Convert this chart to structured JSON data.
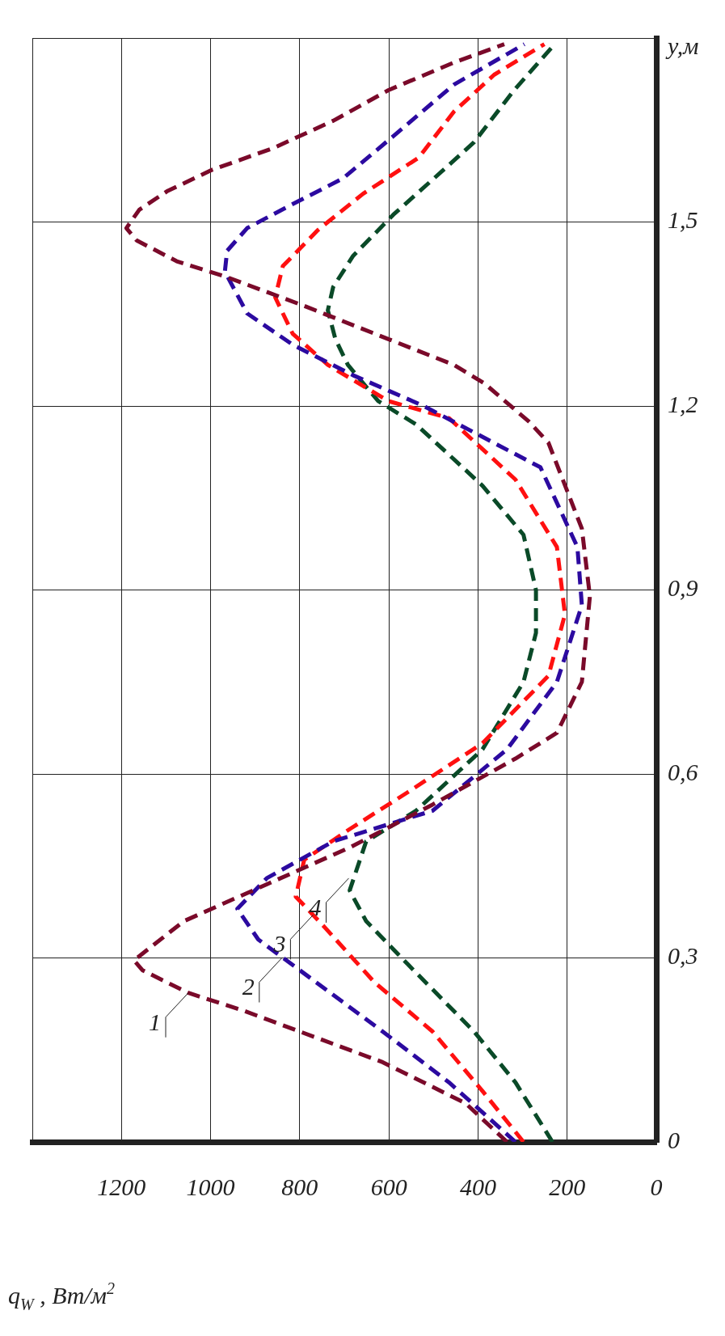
{
  "chart_data": {
    "type": "line",
    "xlabel": "q$_{W}$ , Вт/м$^{2}$",
    "ylabel": "y,м",
    "xlim": [
      1400,
      0
    ],
    "xticks": [
      {
        "value": 1400,
        "label": null
      },
      1200,
      1000,
      800,
      600,
      400,
      200,
      0
    ],
    "ylim": [
      0,
      1.8
    ],
    "yticks": [
      {
        "value": 0,
        "label": "0"
      },
      {
        "value": 0.3,
        "label": "0,3"
      },
      {
        "value": 0.6,
        "label": "0,6"
      },
      {
        "value": 0.9,
        "label": "0,9"
      },
      {
        "value": 1.2,
        "label": "1,2"
      },
      {
        "value": 1.5,
        "label": "1,5"
      },
      {
        "value": 1.8,
        "label": null
      }
    ],
    "grid": true,
    "legend": false,
    "marker": "none",
    "line_style": "dashed",
    "series": [
      {
        "color": "#7a0a2a",
        "values": [
          0,
          0.063,
          0.13,
          0.18,
          0.215,
          0.243,
          0.28,
          0.296,
          0.36,
          0.42,
          0.48,
          0.55,
          0.625,
          0.667,
          0.75,
          0.89,
          1.0,
          1.14,
          1.174,
          1.237,
          1.267,
          1.309,
          1.364,
          1.41,
          1.436,
          1.47,
          1.49,
          1.52,
          1.55,
          1.585,
          1.62,
          1.665,
          1.715,
          1.76,
          1.79
        ],
        "x": [
          335,
          428,
          614,
          800,
          930,
          1050,
          1153,
          1172,
          1060,
          874,
          688,
          502,
          316,
          223,
          167,
          149,
          167,
          242,
          285,
          386,
          454,
          601,
          793,
          963,
          1076,
          1166,
          1189,
          1160,
          1098,
          997,
          861,
          725,
          601,
          454,
          341
        ]
      },
      {
        "color": "#2c0aa0",
        "values": [
          0,
          0.097,
          0.18,
          0.28,
          0.33,
          0.38,
          0.43,
          0.49,
          0.54,
          0.64,
          0.75,
          0.875,
          0.97,
          1.1,
          1.2,
          1.25,
          1.3,
          1.351,
          1.419,
          1.453,
          1.49,
          1.525,
          1.571,
          1.64,
          1.724,
          1.79
        ],
        "x": [
          316,
          465,
          614,
          800,
          893,
          940,
          874,
          725,
          502,
          335,
          223,
          167,
          177,
          260,
          522,
          680,
          816,
          918,
          968,
          963,
          918,
          827,
          703,
          590,
          454,
          296
        ]
      },
      {
        "color": "#ff1010",
        "values": [
          0,
          0.083,
          0.18,
          0.26,
          0.35,
          0.4,
          0.46,
          0.51,
          0.57,
          0.65,
          0.76,
          0.86,
          0.97,
          1.08,
          1.18,
          1.208,
          1.267,
          1.318,
          1.377,
          1.428,
          1.487,
          1.546,
          1.605,
          1.68,
          1.74,
          1.79
        ],
        "x": [
          298,
          390,
          502,
          632,
          744,
          809,
          790,
          688,
          558,
          390,
          242,
          205,
          223,
          316,
          465,
          601,
          737,
          816,
          855,
          838,
          759,
          658,
          533,
          454,
          364,
          251
        ]
      },
      {
        "color": "#0a4a28",
        "values": [
          0,
          0.097,
          0.18,
          0.29,
          0.36,
          0.41,
          0.49,
          0.54,
          0.64,
          0.75,
          0.83,
          0.9,
          0.99,
          1.07,
          1.17,
          1.208,
          1.267,
          1.309,
          1.356,
          1.394,
          1.445,
          1.512,
          1.571,
          1.63,
          1.715,
          1.79
        ],
        "x": [
          233,
          316,
          409,
          558,
          651,
          688,
          651,
          539,
          390,
          298,
          270,
          270,
          298,
          390,
          539,
          624,
          692,
          720,
          737,
          725,
          680,
          590,
          499,
          409,
          319,
          228
        ]
      }
    ],
    "annotations": [
      {
        "text": "1",
        "x": 1050,
        "y": 0.243
      },
      {
        "text": "2",
        "x": 840,
        "y": 0.3
      },
      {
        "text": "3",
        "x": 770,
        "y": 0.37
      },
      {
        "text": "4",
        "x": 690,
        "y": 0.43
      }
    ]
  }
}
